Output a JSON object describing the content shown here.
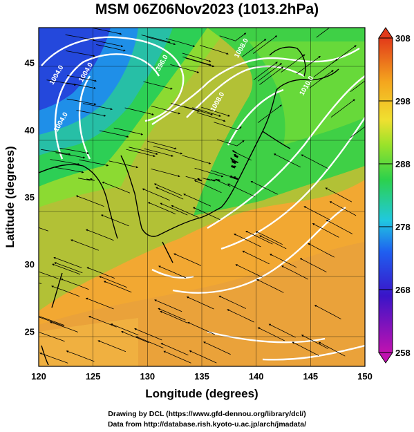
{
  "chart_data": {
    "type": "heatmap",
    "title": "MSM 06Z06Nov2023 (1013.2hPa)",
    "xlabel": "Longitude (degrees)",
    "ylabel": "Latitude  (degrees)",
    "xlim": [
      120,
      150
    ],
    "ylim": [
      22.4,
      47.6
    ],
    "x_ticks": [
      "120",
      "125",
      "130",
      "135",
      "140",
      "145",
      "150"
    ],
    "y_ticks": [
      "25",
      "30",
      "35",
      "40",
      "45"
    ],
    "grid": true,
    "colorbar": {
      "min": 258,
      "max": 308,
      "tick_labels": [
        "258",
        "268",
        "278",
        "288",
        "298",
        "308"
      ],
      "colors": [
        "#c012b0",
        "#3a14c8",
        "#1f5ff0",
        "#20c8e0",
        "#2cd14c",
        "#9ae22a",
        "#f0e030",
        "#f4a61e",
        "#e23a1a"
      ]
    },
    "contour_labels": [
      {
        "text": "1004.0",
        "lon": 121.8,
        "lat": 44.0
      },
      {
        "text": "1004.0",
        "lon": 122.2,
        "lat": 40.5
      },
      {
        "text": "1004.0",
        "lon": 124.5,
        "lat": 44.2
      },
      {
        "text": "396.0",
        "lon": 131.5,
        "lat": 44.9
      },
      {
        "text": "1008.0",
        "lon": 138.8,
        "lat": 46.0
      },
      {
        "text": "1008.0",
        "lon": 136.6,
        "lat": 42.0
      },
      {
        "text": "1010.0",
        "lon": 144.8,
        "lat": 43.2
      }
    ],
    "airflow": "mostly north-easterly flow over the ocean south of Japan, westerly flow over the continent"
  },
  "credits": {
    "line1": "Drawing by DCL (https://www.gfd-dennou.org/library/dcl/)",
    "line2": "Data from http://database.rish.kyoto-u.ac.jp/arch/jmadata/"
  }
}
